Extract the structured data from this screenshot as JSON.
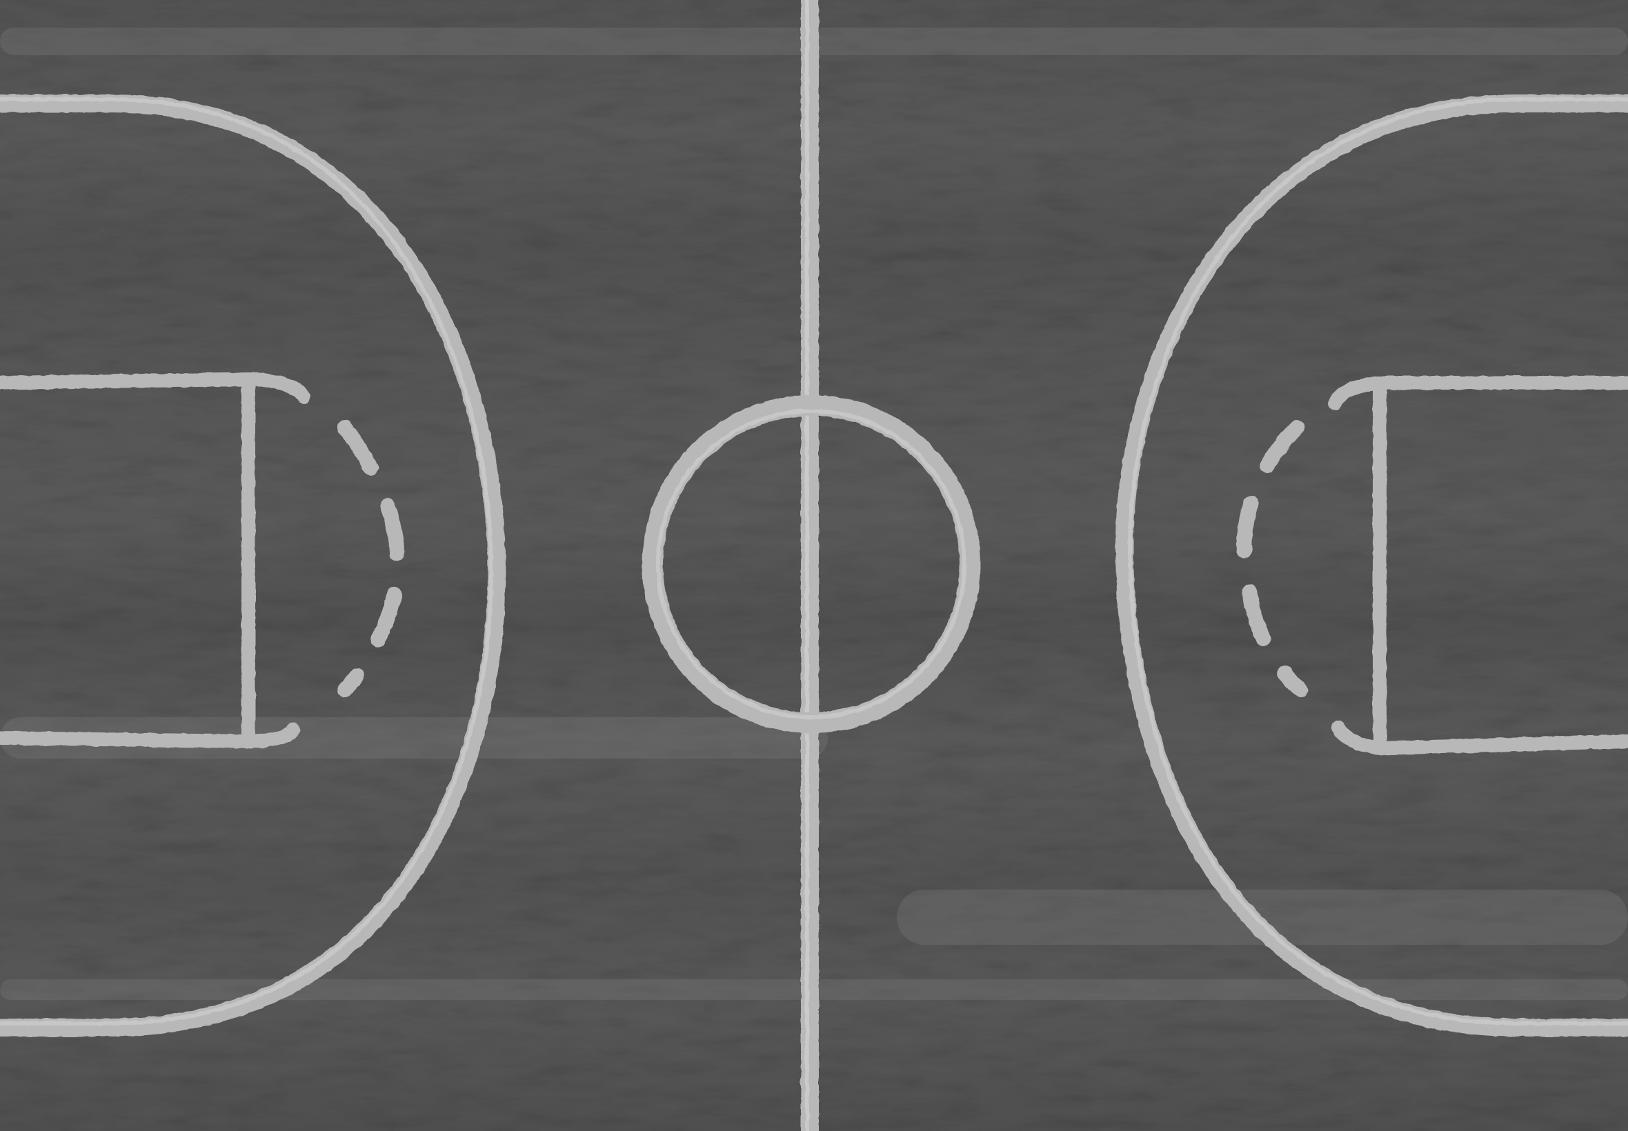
{
  "scene": {
    "subject": "basketball-court",
    "view": "top-down",
    "style": "chalk-on-asphalt",
    "monochrome": true
  },
  "colors": {
    "surface": "#555555",
    "surface_dark": "#3e3e3e",
    "surface_light": "#6a6a6a",
    "line": "#b8b8b8",
    "line_highlight": "#d6d6d6"
  },
  "court": {
    "markings": [
      "center-line",
      "center-circle",
      "three-point-arc-left",
      "three-point-arc-right",
      "key-left",
      "key-right",
      "free-throw-dashed-arc-left",
      "free-throw-dashed-arc-right"
    ]
  }
}
